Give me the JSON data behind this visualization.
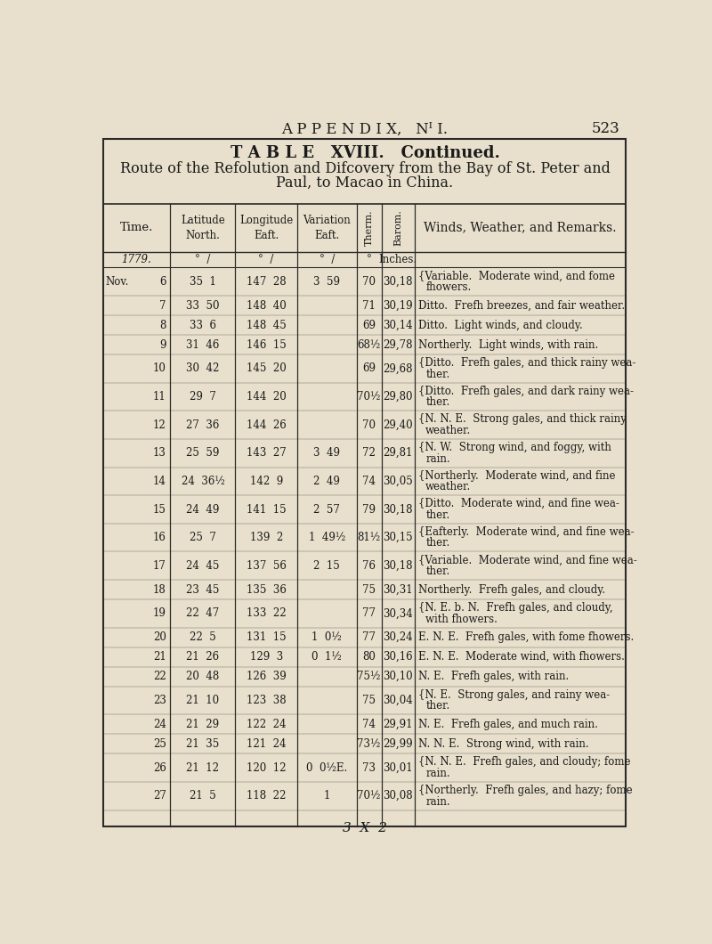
{
  "page_header": "A P P E N D I X,   Nᴵ I.",
  "page_number": "523",
  "table_title_line1": "T A B L E   XVIII.   Continued.",
  "table_title_line2": "Route of the Refolution and Difcovery from the Bay of St. Peter and",
  "table_title_line3": "Paul, to Macao in China.",
  "col_headers": [
    "Time.",
    "Latitude\nNorth.",
    "Longitude\nEaft.",
    "Variation\nEaft.",
    "Therm.",
    "Barom.",
    "Winds, Weather, and Remarks."
  ],
  "subheader_row": [
    "1779.",
    "°  /",
    "°  /",
    "°  /",
    "°",
    "Inches.",
    ""
  ],
  "rows": [
    [
      "Nov.  6",
      "35  1",
      "147  28",
      "3  59",
      "70",
      "30,18",
      "{Variable.  Moderate wind, and fome\nfhowers."
    ],
    [
      "7",
      "33  50",
      "148  40",
      "",
      "71",
      "30,19",
      "Ditto.  Frefh breezes, and fair weather."
    ],
    [
      "8",
      "33  6",
      "148  45",
      "",
      "69",
      "30,14",
      "Ditto.  Light winds, and cloudy."
    ],
    [
      "9",
      "31  46",
      "146  15",
      "",
      "68½",
      "29,78",
      "Northerly.  Light winds, with rain."
    ],
    [
      "10",
      "30  42",
      "145  20",
      "",
      "69",
      "29,68",
      "{Ditto.  Frefh gales, and thick rainy wea-\nther."
    ],
    [
      "11",
      "29  7",
      "144  20",
      "",
      "70½",
      "29,80",
      "{Ditto.  Frefh gales, and dark rainy wea-\nther."
    ],
    [
      "12",
      "27  36",
      "144  26",
      "",
      "70",
      "29,40",
      "{N. N. E.  Strong gales, and thick rainy\nweather."
    ],
    [
      "13",
      "25  59",
      "143  27",
      "3  49",
      "72",
      "29,81",
      "{N. W.  Strong wind, and foggy, with\nrain."
    ],
    [
      "14",
      "24  36½",
      "142  9",
      "2  49",
      "74",
      "30,05",
      "{Northerly.  Moderate wind, and fine\nweather."
    ],
    [
      "15",
      "24  49",
      "141  15",
      "2  57",
      "79",
      "30,18",
      "{Ditto.  Moderate wind, and fine wea-\nther."
    ],
    [
      "16",
      "25  7",
      "139  2",
      "1  49½",
      "81½",
      "30,15",
      "{Eafterly.  Moderate wind, and fine wea-\nther."
    ],
    [
      "17",
      "24  45",
      "137  56",
      "2  15",
      "76",
      "30,18",
      "{Variable.  Moderate wind, and fine wea-\nther."
    ],
    [
      "18",
      "23  45",
      "135  36",
      "",
      "75",
      "30,31",
      "Northerly.  Frefh gales, and cloudy."
    ],
    [
      "19",
      "22  47",
      "133  22",
      "",
      "77",
      "30,34",
      "{N. E. b. N.  Frefh gales, and cloudy,\nwith fhowers."
    ],
    [
      "20",
      "22  5",
      "131  15",
      "1  0½",
      "77",
      "30,24",
      "E. N. E.  Frefh gales, with fome fhowers."
    ],
    [
      "21",
      "21  26",
      "129  3",
      "0  1½",
      "80",
      "30,16",
      "E. N. E.  Moderate wind, with fhowers."
    ],
    [
      "22",
      "20  48",
      "126  39",
      "",
      "75½",
      "30,10",
      "N. E.  Frefh gales, with rain."
    ],
    [
      "23",
      "21  10",
      "123  38",
      "",
      "75",
      "30,04",
      "{N. E.  Strong gales, and rainy wea-\nther."
    ],
    [
      "24",
      "21  29",
      "122  24",
      "",
      "74",
      "29,91",
      "N. E.  Frefh gales, and much rain."
    ],
    [
      "25",
      "21  35",
      "121  24",
      "",
      "73½",
      "29,99",
      "N. N. E.  Strong wind, with rain."
    ],
    [
      "26",
      "21  12",
      "120  12",
      "0  0½E.",
      "73",
      "30,01",
      "{N. N. E.  Frefh gales, and cloudy; fome\nrain."
    ],
    [
      "27",
      "21  5",
      "118  22",
      "1",
      "70½",
      "30,08",
      "{Northerly.  Frefh gales, and hazy; fome\nrain."
    ]
  ],
  "footer": "3  X  2",
  "bg_color": "#e8e0cc",
  "text_color": "#1a1a1a",
  "line_color": "#2a2a2a"
}
